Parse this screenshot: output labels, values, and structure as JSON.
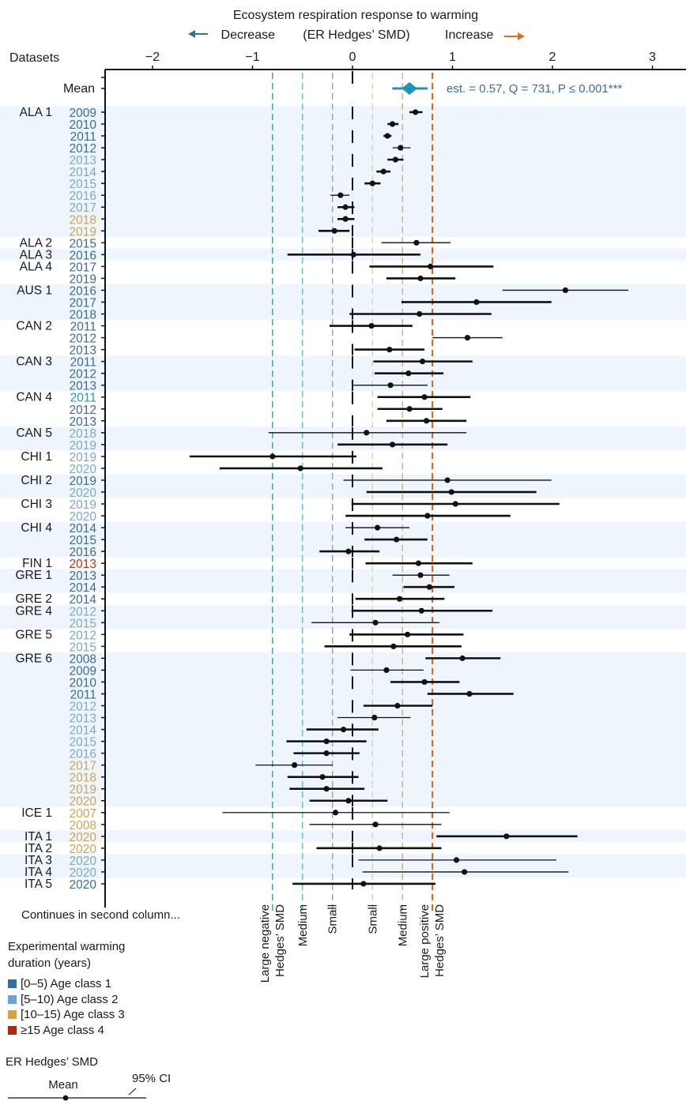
{
  "chart_data": {
    "type": "forest",
    "title": "Ecosystem respiration response to warming",
    "subtitle_left": "Decrease",
    "subtitle_center": "(ER Hedges’ SMD)",
    "subtitle_right": "Increase",
    "ylabel": "Datasets",
    "xlim": [
      -2.5,
      3.3
    ],
    "xticks": [
      -2,
      -1,
      0,
      1,
      2,
      3
    ],
    "xtick_labels": [
      "−2",
      "−1",
      "0",
      "1",
      "2",
      "3"
    ],
    "reference_lines": [
      {
        "value": -0.8,
        "label": "Large negative\nHedges’ SMD",
        "label_l1": "Large negative",
        "label_l2": "Hedges’ SMD",
        "color": "#2c8fb0"
      },
      {
        "value": -0.5,
        "label": "Medium",
        "label_l1": "Medium",
        "label_l2": "",
        "color": "#5bb2d6"
      },
      {
        "value": -0.2,
        "label": "Small",
        "label_l1": "Small",
        "label_l2": "",
        "color": "#9a9a9a"
      },
      {
        "value": 0.2,
        "label": "Small",
        "label_l1": "Small",
        "label_l2": "",
        "color": "#e8d36a"
      },
      {
        "value": 0.5,
        "label": "Medium",
        "label_l1": "Medium",
        "label_l2": "",
        "color": "#e0a84a"
      },
      {
        "value": 0.8,
        "label": "Large positive\nHedges’ SMD",
        "label_l1": "Large positive",
        "label_l2": "Hedges’ SMD",
        "color": "#c8601a"
      }
    ],
    "mean": {
      "label": "Mean",
      "estimate": 0.57,
      "ci": [
        0.43,
        0.72
      ],
      "annotation": "est. = 0.57, Q = 731, P ≤ 0.001***",
      "color": "#1f93b8"
    },
    "age_classes": {
      "1": "#3a6c9a",
      "2": "#7fa6cc",
      "3": "#d3a24e",
      "4": "#b5361a",
      "c": "#2a9aa8"
    },
    "groups": [
      {
        "site": "ALA 1",
        "rows": [
          {
            "year": "2009",
            "age": "1",
            "est": 0.63,
            "lo": 0.57,
            "hi": 0.7,
            "w": "thick"
          },
          {
            "year": "2010",
            "age": "1",
            "est": 0.4,
            "lo": 0.35,
            "hi": 0.46,
            "w": "thick"
          },
          {
            "year": "2011",
            "age": "1",
            "est": 0.35,
            "lo": 0.31,
            "hi": 0.39,
            "w": "thick"
          },
          {
            "year": "2012",
            "age": "1",
            "est": 0.48,
            "lo": 0.4,
            "hi": 0.58,
            "w": "thin"
          },
          {
            "year": "2013",
            "age": "2",
            "est": 0.43,
            "lo": 0.35,
            "hi": 0.51,
            "w": "thick"
          },
          {
            "year": "2014",
            "age": "2",
            "est": 0.31,
            "lo": 0.24,
            "hi": 0.38,
            "w": "thick"
          },
          {
            "year": "2015",
            "age": "2",
            "est": 0.2,
            "lo": 0.12,
            "hi": 0.28,
            "w": "thick"
          },
          {
            "year": "2016",
            "age": "2",
            "est": -0.12,
            "lo": -0.22,
            "hi": -0.03,
            "w": "thin"
          },
          {
            "year": "2017",
            "age": "2",
            "est": -0.07,
            "lo": -0.15,
            "hi": 0.02,
            "w": "thick"
          },
          {
            "year": "2018",
            "age": "3",
            "est": -0.07,
            "lo": -0.15,
            "hi": 0.02,
            "w": "thick"
          },
          {
            "year": "2019",
            "age": "3",
            "est": -0.18,
            "lo": -0.34,
            "hi": -0.03,
            "w": "thick"
          }
        ]
      },
      {
        "site": "ALA 2",
        "rows": [
          {
            "year": "2015",
            "age": "1",
            "est": 0.64,
            "lo": 0.29,
            "hi": 0.98,
            "w": "thin"
          }
        ]
      },
      {
        "site": "ALA 3",
        "rows": [
          {
            "year": "2016",
            "age": "1",
            "est": 0.01,
            "lo": -0.65,
            "hi": 0.68,
            "w": "thick"
          }
        ]
      },
      {
        "site": "ALA 4",
        "rows": [
          {
            "year": "2017",
            "age": "1",
            "est": 0.78,
            "lo": 0.17,
            "hi": 1.41,
            "w": "thick"
          },
          {
            "year": "2019",
            "age": "1",
            "est": 0.68,
            "lo": 0.34,
            "hi": 1.03,
            "w": "thick"
          }
        ]
      },
      {
        "site": "AUS 1",
        "rows": [
          {
            "year": "2016",
            "age": "1",
            "est": 2.13,
            "lo": 1.5,
            "hi": 2.76,
            "w": "thin"
          },
          {
            "year": "2017",
            "age": "1",
            "est": 1.24,
            "lo": 0.49,
            "hi": 1.99,
            "w": "thick"
          },
          {
            "year": "2018",
            "age": "1",
            "est": 0.67,
            "lo": -0.03,
            "hi": 1.39,
            "w": "thick"
          }
        ]
      },
      {
        "site": "CAN 2",
        "rows": [
          {
            "year": "2011",
            "age": "1",
            "est": 0.19,
            "lo": -0.23,
            "hi": 0.6,
            "w": "thick"
          },
          {
            "year": "2012",
            "age": "1",
            "est": 1.15,
            "lo": 0.8,
            "hi": 1.5,
            "w": "thin"
          },
          {
            "year": "2013",
            "age": "1",
            "est": 0.37,
            "lo": 0.02,
            "hi": 0.72,
            "w": "thick"
          }
        ]
      },
      {
        "site": "CAN 3",
        "rows": [
          {
            "year": "2011",
            "age": "1",
            "est": 0.7,
            "lo": 0.21,
            "hi": 1.2,
            "w": "thick"
          },
          {
            "year": "2012",
            "age": "1",
            "est": 0.56,
            "lo": 0.22,
            "hi": 0.91,
            "w": "thick"
          },
          {
            "year": "2013",
            "age": "1",
            "est": 0.38,
            "lo": 0.01,
            "hi": 0.75,
            "w": "thin"
          }
        ]
      },
      {
        "site": "CAN 4",
        "rows": [
          {
            "year": "2011",
            "age": "c",
            "est": 0.72,
            "lo": 0.25,
            "hi": 1.18,
            "w": "thick"
          },
          {
            "year": "2012",
            "age": "1",
            "est": 0.57,
            "lo": 0.25,
            "hi": 0.9,
            "w": "thick"
          },
          {
            "year": "2013",
            "age": "1",
            "est": 0.74,
            "lo": 0.34,
            "hi": 1.14,
            "w": "thick"
          }
        ]
      },
      {
        "site": "CAN 5",
        "rows": [
          {
            "year": "2018",
            "age": "2",
            "est": 0.14,
            "lo": -0.84,
            "hi": 1.14,
            "w": "thin"
          },
          {
            "year": "2019",
            "age": "2",
            "est": 0.4,
            "lo": -0.15,
            "hi": 0.95,
            "w": "thick"
          }
        ]
      },
      {
        "site": "CHI 1",
        "rows": [
          {
            "year": "2019",
            "age": "2",
            "est": -0.8,
            "lo": -1.63,
            "hi": 0.04,
            "w": "thick"
          },
          {
            "year": "2020",
            "age": "2",
            "est": -0.52,
            "lo": -1.33,
            "hi": 0.3,
            "w": "thick"
          }
        ]
      },
      {
        "site": "CHI 2",
        "rows": [
          {
            "year": "2019",
            "age": "1",
            "est": 0.95,
            "lo": -0.09,
            "hi": 1.99,
            "w": "thin"
          },
          {
            "year": "2020",
            "age": "2",
            "est": 0.99,
            "lo": 0.14,
            "hi": 1.84,
            "w": "thick"
          }
        ]
      },
      {
        "site": "CHI 3",
        "rows": [
          {
            "year": "2019",
            "age": "2",
            "est": 1.03,
            "lo": -0.01,
            "hi": 2.07,
            "w": "thick"
          },
          {
            "year": "2020",
            "age": "2",
            "est": 0.75,
            "lo": -0.07,
            "hi": 1.58,
            "w": "thick"
          }
        ]
      },
      {
        "site": "CHI 4",
        "rows": [
          {
            "year": "2014",
            "age": "1",
            "est": 0.25,
            "lo": -0.07,
            "hi": 0.57,
            "w": "thin"
          },
          {
            "year": "2015",
            "age": "1",
            "est": 0.44,
            "lo": 0.12,
            "hi": 0.75,
            "w": "thick"
          },
          {
            "year": "2016",
            "age": "1",
            "est": -0.04,
            "lo": -0.33,
            "hi": 0.27,
            "w": "thick"
          }
        ]
      },
      {
        "site": "FIN 1",
        "rows": [
          {
            "year": "2013",
            "age": "4",
            "est": 0.66,
            "lo": 0.13,
            "hi": 1.2,
            "w": "thick"
          }
        ]
      },
      {
        "site": "GRE 1",
        "rows": [
          {
            "year": "2013",
            "age": "1",
            "est": 0.68,
            "lo": 0.4,
            "hi": 0.97,
            "w": "thin"
          },
          {
            "year": "2014",
            "age": "1",
            "est": 0.77,
            "lo": 0.51,
            "hi": 1.02,
            "w": "thick"
          }
        ]
      },
      {
        "site": "GRE 2",
        "rows": [
          {
            "year": "2014",
            "age": "1",
            "est": 0.47,
            "lo": 0.03,
            "hi": 0.92,
            "w": "thick"
          }
        ]
      },
      {
        "site": "GRE 4",
        "rows": [
          {
            "year": "2012",
            "age": "2",
            "est": 0.69,
            "lo": -0.01,
            "hi": 1.4,
            "w": "thick"
          },
          {
            "year": "2015",
            "age": "2",
            "est": 0.23,
            "lo": -0.41,
            "hi": 0.87,
            "w": "thin"
          }
        ]
      },
      {
        "site": "GRE 5",
        "rows": [
          {
            "year": "2012",
            "age": "2",
            "est": 0.55,
            "lo": -0.03,
            "hi": 1.11,
            "w": "thick"
          },
          {
            "year": "2015",
            "age": "2",
            "est": 0.41,
            "lo": -0.28,
            "hi": 1.09,
            "w": "thick"
          }
        ]
      },
      {
        "site": "GRE 6",
        "rows": [
          {
            "year": "2008",
            "age": "1",
            "est": 1.1,
            "lo": 0.73,
            "hi": 1.48,
            "w": "thick"
          },
          {
            "year": "2009",
            "age": "1",
            "est": 0.34,
            "lo": -0.02,
            "hi": 0.71,
            "w": "thin"
          },
          {
            "year": "2010",
            "age": "1",
            "est": 0.72,
            "lo": 0.38,
            "hi": 1.07,
            "w": "thick"
          },
          {
            "year": "2011",
            "age": "1",
            "est": 1.17,
            "lo": 0.75,
            "hi": 1.61,
            "w": "thick"
          },
          {
            "year": "2012",
            "age": "2",
            "est": 0.45,
            "lo": 0.11,
            "hi": 0.8,
            "w": "thick"
          },
          {
            "year": "2013",
            "age": "2",
            "est": 0.22,
            "lo": -0.15,
            "hi": 0.58,
            "w": "thin"
          },
          {
            "year": "2014",
            "age": "2",
            "est": -0.09,
            "lo": -0.46,
            "hi": 0.26,
            "w": "thick"
          },
          {
            "year": "2015",
            "age": "2",
            "est": -0.26,
            "lo": -0.66,
            "hi": 0.14,
            "w": "thick"
          },
          {
            "year": "2016",
            "age": "2",
            "est": -0.26,
            "lo": -0.59,
            "hi": 0.07,
            "w": "thick"
          },
          {
            "year": "2017",
            "age": "3",
            "est": -0.58,
            "lo": -0.97,
            "hi": -0.2,
            "w": "thin"
          },
          {
            "year": "2018",
            "age": "3",
            "est": -0.3,
            "lo": -0.65,
            "hi": 0.06,
            "w": "thick"
          },
          {
            "year": "2019",
            "age": "3",
            "est": -0.26,
            "lo": -0.63,
            "hi": 0.12,
            "w": "thick"
          },
          {
            "year": "2020",
            "age": "3",
            "est": -0.04,
            "lo": -0.43,
            "hi": 0.35,
            "w": "thick"
          }
        ]
      },
      {
        "site": "ICE 1",
        "rows": [
          {
            "year": "2007",
            "age": "3",
            "est": -0.17,
            "lo": -1.3,
            "hi": 0.97,
            "w": "thin"
          },
          {
            "year": "2008",
            "age": "3",
            "est": 0.23,
            "lo": -0.43,
            "hi": 0.89,
            "w": "thin"
          }
        ]
      },
      {
        "site": "ITA 1",
        "rows": [
          {
            "year": "2020",
            "age": "3",
            "est": 1.54,
            "lo": 0.84,
            "hi": 2.25,
            "w": "thick"
          }
        ]
      },
      {
        "site": "ITA 2",
        "rows": [
          {
            "year": "2020",
            "age": "3",
            "est": 0.27,
            "lo": -0.36,
            "hi": 0.89,
            "w": "thick"
          }
        ]
      },
      {
        "site": "ITA 3",
        "rows": [
          {
            "year": "2020",
            "age": "2",
            "est": 1.04,
            "lo": 0.06,
            "hi": 2.04,
            "w": "thin"
          },
          {
            "year": "2020",
            "age": "2",
            "est": 1.12,
            "lo": 0.1,
            "hi": 2.16,
            "w": "thin",
            "site_label": "ITA 4"
          }
        ]
      },
      {
        "site": "ITA 5",
        "rows": [
          {
            "year": "2020",
            "age": "1",
            "est": 0.11,
            "lo": -0.6,
            "hi": 0.83,
            "w": "thick"
          }
        ]
      }
    ],
    "zero_segments_note": "vertical zero-reference segments drawn per group"
  },
  "footer": {
    "continues": "Continues in second column...",
    "legend_title_1": "Experimental warming",
    "legend_title_2": "duration (years)",
    "age_legend": [
      {
        "label": "[0–5) Age class 1",
        "color": "#3a6c9a"
      },
      {
        "label": "[5–10) Age class 2",
        "color": "#6fa3d3"
      },
      {
        "label": "[10–15) Age class 3",
        "color": "#d9a03e"
      },
      {
        "label": "≥15 Age class 4",
        "color": "#ad2a10"
      }
    ],
    "ci_legend_title": "ER Hedges’ SMD",
    "ci_legend_mean": "Mean",
    "ci_legend_ci": "95% CI"
  },
  "arrows": {
    "decrease_color": "#3a6c9a",
    "increase_color": "#d9731f"
  }
}
